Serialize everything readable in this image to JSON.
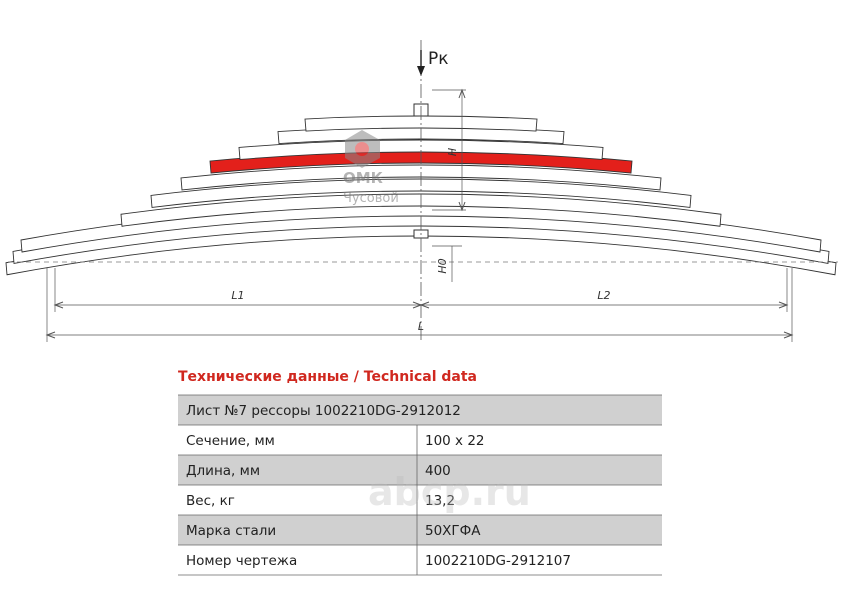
{
  "drawing": {
    "force_label": "Рк",
    "height_label": "H",
    "height0_label": "H0",
    "l1_label": "L1",
    "l2_label": "L2",
    "length_label": "L"
  },
  "logo": {
    "name": "ОМК",
    "city": "Чусовой"
  },
  "watermark": "abcp.ru",
  "table": {
    "title": "Технические данные / Technical data",
    "header": "Лист №7 рессоры 1002210DG-2912012",
    "rows": [
      [
        "Сечение, мм",
        "100 х 22"
      ],
      [
        "Длина, мм",
        "400"
      ],
      [
        "Вес, кг",
        "13,2"
      ],
      [
        "Марка стали",
        "50ХГФА"
      ],
      [
        "Номер чертежа",
        "1002210DG-2912107"
      ]
    ]
  }
}
